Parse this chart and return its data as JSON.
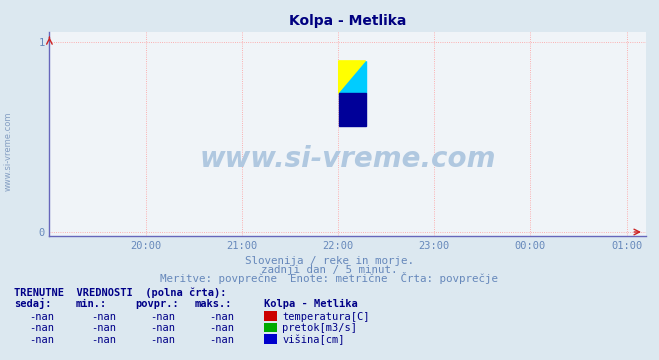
{
  "title": "Kolpa - Metlika",
  "title_color": "#000080",
  "bg_color": "#dce8f0",
  "plot_bg_color": "#f0f4f8",
  "grid_color_h": "#ff9999",
  "grid_color_v": "#ff9999",
  "axis_color": "#6666bb",
  "xlim_hours": [
    19.0,
    25.2
  ],
  "xtick_labels": [
    "20:00",
    "21:00",
    "22:00",
    "23:00",
    "00:00",
    "01:00"
  ],
  "xtick_positions": [
    20,
    21,
    22,
    23,
    24,
    25
  ],
  "ylim": [
    -0.02,
    1.05
  ],
  "ytick_labels": [
    "0",
    "1"
  ],
  "ytick_positions": [
    0,
    1
  ],
  "subtitle1": "Slovenija / reke in morje.",
  "subtitle2": "zadnji dan / 5 minut.",
  "subtitle3": "Meritve: povprečne  Enote: metrične  Črta: povprečje",
  "subtitle_color": "#6688bb",
  "watermark_text": "www.si-vreme.com",
  "watermark_color": "#b0c8e0",
  "legend_title": "Kolpa - Metlika",
  "legend_items": [
    "temperatura[C]",
    "pretok[m3/s]",
    "višina[cm]"
  ],
  "legend_colors": [
    "#cc0000",
    "#00aa00",
    "#0000cc"
  ],
  "table_header": "TRENUTNE  VREDNOSTI  (polna črta):",
  "table_cols": [
    "sedaj:",
    "min.:",
    "povpr.:",
    "maks.:"
  ],
  "table_values": [
    [
      "-nan",
      "-nan",
      "-nan",
      "-nan"
    ],
    [
      "-nan",
      "-nan",
      "-nan",
      "-nan"
    ],
    [
      "-nan",
      "-nan",
      "-nan",
      "-nan"
    ]
  ],
  "table_color": "#000088",
  "ylabel_text": "www.si-vreme.com",
  "ylabel_color": "#5577aa"
}
